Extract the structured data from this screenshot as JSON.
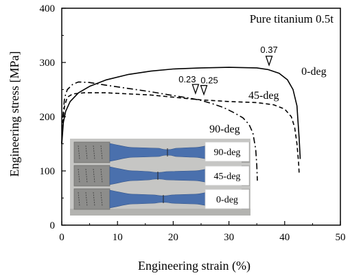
{
  "chart_data": {
    "type": "line",
    "title": "Pure titanium 0.5t",
    "xlabel": "Engineering strain (%)",
    "ylabel": "Engineering stress [MPa]",
    "xlim": [
      0,
      50
    ],
    "ylim": [
      0,
      400
    ],
    "xticks": [
      "0",
      "10",
      "20",
      "30",
      "40",
      "50"
    ],
    "yticks": [
      "0",
      "100",
      "200",
      "300",
      "400"
    ],
    "grid": false,
    "legend": "none",
    "series": [
      {
        "name": "0-deg",
        "style": "solid",
        "points": [
          [
            0,
            150
          ],
          [
            0.3,
            190
          ],
          [
            0.7,
            210
          ],
          [
            1.5,
            228
          ],
          [
            3,
            244
          ],
          [
            5,
            256
          ],
          [
            8,
            268
          ],
          [
            12,
            278
          ],
          [
            16,
            284
          ],
          [
            20,
            288
          ],
          [
            25,
            290
          ],
          [
            30,
            291
          ],
          [
            35,
            290
          ],
          [
            37,
            287
          ],
          [
            39,
            280
          ],
          [
            40.5,
            268
          ],
          [
            41.5,
            250
          ],
          [
            42.2,
            220
          ],
          [
            42.6,
            160
          ],
          [
            42.8,
            122
          ]
        ]
      },
      {
        "name": "45-deg",
        "style": "dashed",
        "points": [
          [
            0,
            150
          ],
          [
            0.2,
            190
          ],
          [
            0.5,
            220
          ],
          [
            1,
            236
          ],
          [
            2,
            242
          ],
          [
            4,
            244
          ],
          [
            8,
            244
          ],
          [
            12,
            242
          ],
          [
            16,
            240
          ],
          [
            20,
            236
          ],
          [
            25,
            231
          ],
          [
            30,
            228
          ],
          [
            35,
            226
          ],
          [
            38,
            222
          ],
          [
            40,
            214
          ],
          [
            41.2,
            200
          ],
          [
            41.8,
            180
          ],
          [
            42.2,
            150
          ],
          [
            42.5,
            115
          ],
          [
            42.6,
            95
          ]
        ]
      },
      {
        "name": "90-deg",
        "style": "dashdot",
        "points": [
          [
            0,
            150
          ],
          [
            0.2,
            200
          ],
          [
            0.5,
            235
          ],
          [
            1,
            250
          ],
          [
            2,
            260
          ],
          [
            3,
            264
          ],
          [
            5,
            263
          ],
          [
            8,
            258
          ],
          [
            12,
            252
          ],
          [
            16,
            246
          ],
          [
            20,
            239
          ],
          [
            23,
            234
          ],
          [
            25,
            230
          ],
          [
            27,
            224
          ],
          [
            29,
            217
          ],
          [
            31,
            207
          ],
          [
            32.5,
            198
          ],
          [
            33.6,
            186
          ],
          [
            34.3,
            170
          ],
          [
            34.8,
            140
          ],
          [
            35,
            110
          ],
          [
            35.1,
            82
          ]
        ]
      }
    ],
    "annotations": [
      {
        "text": "0.37",
        "x": 37.2,
        "y": 290
      },
      {
        "text": "0.23",
        "x": 24,
        "y": 238
      },
      {
        "text": "0.25",
        "x": 25.5,
        "y": 236
      }
    ],
    "inset_labels": [
      "90-deg",
      "45-deg",
      "0-deg"
    ]
  }
}
